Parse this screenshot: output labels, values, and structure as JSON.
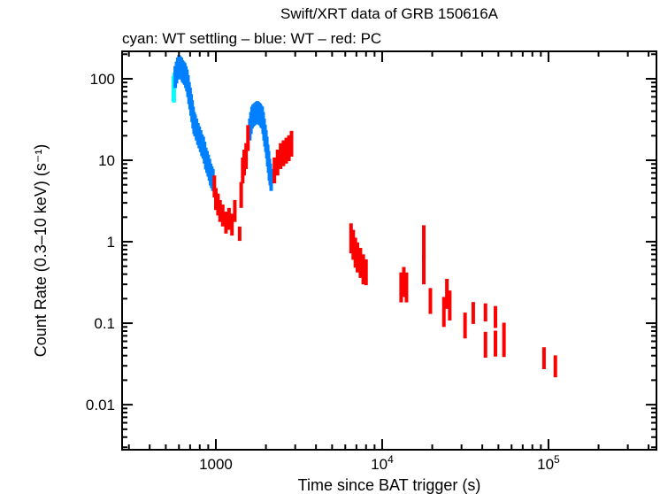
{
  "chart_data": {
    "type": "scatter",
    "title": "Swift/XRT data of GRB 150616A",
    "subtitle": "cyan: WT settling – blue: WT – red: PC",
    "xlabel": "Time since BAT trigger (s)",
    "ylabel": "Count Rate (0.3–10 keV) (s⁻¹)",
    "xscale": "log",
    "yscale": "log",
    "xlim": [
      273,
      446000
    ],
    "ylim": [
      0.0028,
      217
    ],
    "grid": false,
    "x_ticks": [
      {
        "value": 1000,
        "label": "1000"
      },
      {
        "value": 10000,
        "label": "10",
        "exp": "4"
      },
      {
        "value": 100000,
        "label": "10",
        "exp": "5"
      }
    ],
    "y_ticks": [
      {
        "value": 0.01,
        "label": "0.01"
      },
      {
        "value": 0.1,
        "label": "0.1"
      },
      {
        "value": 1,
        "label": "1"
      },
      {
        "value": 10,
        "label": "10"
      },
      {
        "value": 100,
        "label": "100"
      }
    ],
    "point_format": [
      "time_s",
      "rate",
      "fractional_error"
    ],
    "series": [
      {
        "label": "WT settling",
        "color": "#00ffff",
        "points": [
          [
            555,
            80,
            0.35
          ],
          [
            562,
            85,
            0.4
          ]
        ]
      },
      {
        "label": "WT",
        "color": "#0080ff",
        "points": [
          [
            570,
            110,
            0.3
          ],
          [
            580,
            125,
            0.3
          ],
          [
            590,
            140,
            0.3
          ],
          [
            600,
            150,
            0.3
          ],
          [
            610,
            145,
            0.3
          ],
          [
            620,
            140,
            0.3
          ],
          [
            630,
            130,
            0.3
          ],
          [
            640,
            125,
            0.3
          ],
          [
            650,
            120,
            0.3
          ],
          [
            660,
            110,
            0.3
          ],
          [
            670,
            100,
            0.3
          ],
          [
            680,
            85,
            0.3
          ],
          [
            690,
            70,
            0.3
          ],
          [
            700,
            60,
            0.3
          ],
          [
            710,
            50,
            0.3
          ],
          [
            720,
            42,
            0.3
          ],
          [
            730,
            35,
            0.3
          ],
          [
            740,
            30,
            0.3
          ],
          [
            750,
            28,
            0.3
          ],
          [
            765,
            25,
            0.3
          ],
          [
            780,
            22,
            0.3
          ],
          [
            795,
            20,
            0.3
          ],
          [
            810,
            18,
            0.3
          ],
          [
            825,
            16,
            0.3
          ],
          [
            840,
            15,
            0.3
          ],
          [
            855,
            13,
            0.3
          ],
          [
            870,
            11,
            0.3
          ],
          [
            885,
            10,
            0.3
          ],
          [
            900,
            9,
            0.3
          ],
          [
            915,
            8,
            0.3
          ],
          [
            930,
            7,
            0.3
          ],
          [
            945,
            6.5,
            0.3
          ],
          [
            960,
            6,
            0.3
          ],
          [
            1600,
            25,
            0.3
          ],
          [
            1625,
            30,
            0.3
          ],
          [
            1650,
            35,
            0.3
          ],
          [
            1675,
            37,
            0.3
          ],
          [
            1700,
            38,
            0.3
          ],
          [
            1725,
            39,
            0.3
          ],
          [
            1750,
            40,
            0.3
          ],
          [
            1775,
            41,
            0.3
          ],
          [
            1800,
            40,
            0.3
          ],
          [
            1825,
            39,
            0.3
          ],
          [
            1850,
            38,
            0.3
          ],
          [
            1875,
            36,
            0.3
          ],
          [
            1900,
            35,
            0.3
          ],
          [
            1925,
            30,
            0.3
          ],
          [
            1950,
            25,
            0.3
          ],
          [
            1975,
            21,
            0.3
          ],
          [
            2000,
            18,
            0.3
          ],
          [
            2025,
            15,
            0.3
          ],
          [
            2050,
            12,
            0.3
          ],
          [
            2075,
            10,
            0.3
          ],
          [
            2100,
            8,
            0.3
          ],
          [
            2125,
            7,
            0.3
          ],
          [
            2150,
            6,
            0.3
          ]
        ]
      },
      {
        "label": "PC",
        "color": "#ff0000",
        "points": [
          [
            980,
            5,
            0.3
          ],
          [
            1000,
            3.5,
            0.3
          ],
          [
            1030,
            3,
            0.3
          ],
          [
            1060,
            2.5,
            0.3
          ],
          [
            1100,
            2.2,
            0.3
          ],
          [
            1150,
            1.8,
            0.3
          ],
          [
            1200,
            2,
            0.3
          ],
          [
            1250,
            1.7,
            0.3
          ],
          [
            1300,
            2.5,
            0.3
          ],
          [
            1390,
            1.28,
            0.2
          ],
          [
            1420,
            4,
            0.35
          ],
          [
            1450,
            8,
            0.35
          ],
          [
            1480,
            10,
            0.35
          ],
          [
            1520,
            12,
            0.35
          ],
          [
            1560,
            20,
            0.35
          ],
          [
            2250,
            8,
            0.35
          ],
          [
            2350,
            10,
            0.35
          ],
          [
            2450,
            12,
            0.35
          ],
          [
            2550,
            13,
            0.35
          ],
          [
            2650,
            14,
            0.35
          ],
          [
            2750,
            15,
            0.35
          ],
          [
            2850,
            17,
            0.35
          ],
          [
            6500,
            1.2,
            0.4
          ],
          [
            6700,
            1.0,
            0.4
          ],
          [
            6900,
            0.8,
            0.4
          ],
          [
            7100,
            0.7,
            0.4
          ],
          [
            7400,
            0.6,
            0.4
          ],
          [
            7700,
            0.5,
            0.4
          ],
          [
            8000,
            0.45,
            0.35
          ],
          [
            13000,
            0.3,
            0.4
          ],
          [
            13500,
            0.35,
            0.4
          ],
          [
            14000,
            0.3,
            0.4
          ],
          [
            17800,
            1.1,
            0.45
          ],
          [
            17800,
            0.5,
            0.4
          ],
          [
            19500,
            0.2,
            0.35
          ],
          [
            23500,
            0.15,
            0.4
          ],
          [
            24500,
            0.25,
            0.4
          ],
          [
            25500,
            0.18,
            0.4
          ],
          [
            31500,
            0.1,
            0.35
          ],
          [
            35300,
            0.14,
            0.3
          ],
          [
            41800,
            0.14,
            0.25
          ],
          [
            41800,
            0.058,
            0.35
          ],
          [
            48000,
            0.125,
            0.3
          ],
          [
            48000,
            0.06,
            0.35
          ],
          [
            54000,
            0.07,
            0.45
          ],
          [
            94000,
            0.039,
            0.3
          ],
          [
            110000,
            0.031,
            0.3
          ]
        ]
      }
    ]
  }
}
